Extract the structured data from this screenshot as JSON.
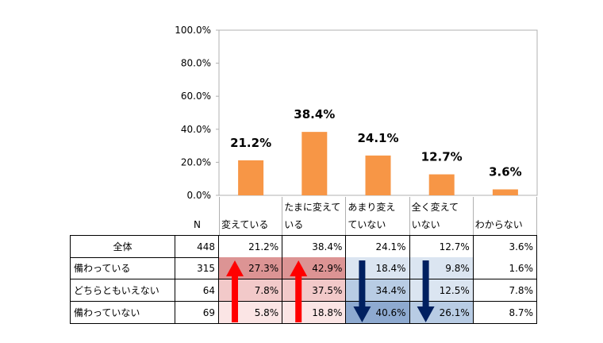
{
  "chart_data": {
    "type": "bar",
    "categories": [
      "変えている",
      "たまに変えている",
      "あまり変えていない",
      "全く変えていない",
      "わからない"
    ],
    "category_lines": [
      [
        "変えている"
      ],
      [
        "たまに変えて",
        "いる"
      ],
      [
        "あまり変え",
        "ていない"
      ],
      [
        "全く変えて",
        "いない"
      ],
      [
        "わからない"
      ]
    ],
    "values": [
      21.2,
      38.4,
      24.1,
      12.7,
      3.6
    ],
    "value_labels": [
      "21.2%",
      "38.4%",
      "24.1%",
      "12.7%",
      "3.6%"
    ],
    "yticks": [
      "0.0%",
      "20.0%",
      "40.0%",
      "60.0%",
      "80.0%",
      "100.0%"
    ],
    "ylim": [
      0,
      100
    ],
    "bar_color": "#f79646",
    "grid": false
  },
  "table": {
    "n_header": "N",
    "rows": [
      {
        "label": "全体",
        "n": "448",
        "values": [
          "21.2%",
          "38.4%",
          "24.1%",
          "12.7%",
          "3.6%"
        ]
      },
      {
        "label": "備わっている",
        "n": "315",
        "values": [
          "27.3%",
          "42.9%",
          "18.4%",
          "9.8%",
          "1.6%"
        ]
      },
      {
        "label": "どちらともいえない",
        "n": "64",
        "values": [
          "7.8%",
          "37.5%",
          "34.4%",
          "12.5%",
          "7.8%"
        ]
      },
      {
        "label": "備わっていない",
        "n": "69",
        "values": [
          "5.8%",
          "18.8%",
          "40.6%",
          "26.1%",
          "8.7%"
        ]
      }
    ],
    "cell_colors": [
      [
        "#ffffff",
        "#ffffff",
        "#ffffff",
        "#ffffff",
        "#ffffff"
      ],
      [
        "#dc9494",
        "#dc9494",
        "#dbe5f1",
        "#dbe5f1",
        "#ffffff"
      ],
      [
        "#f2c9c9",
        "#f2c9c9",
        "#b8cce4",
        "#dbe5f1",
        "#ffffff"
      ],
      [
        "#fbe5e5",
        "#fbe5e5",
        "#8eaad0",
        "#b8cce4",
        "#ffffff"
      ]
    ]
  },
  "arrows": {
    "up_color": "#ff0000",
    "down_color": "#002060",
    "up_columns": [
      0,
      1
    ],
    "down_columns": [
      2,
      3
    ]
  }
}
